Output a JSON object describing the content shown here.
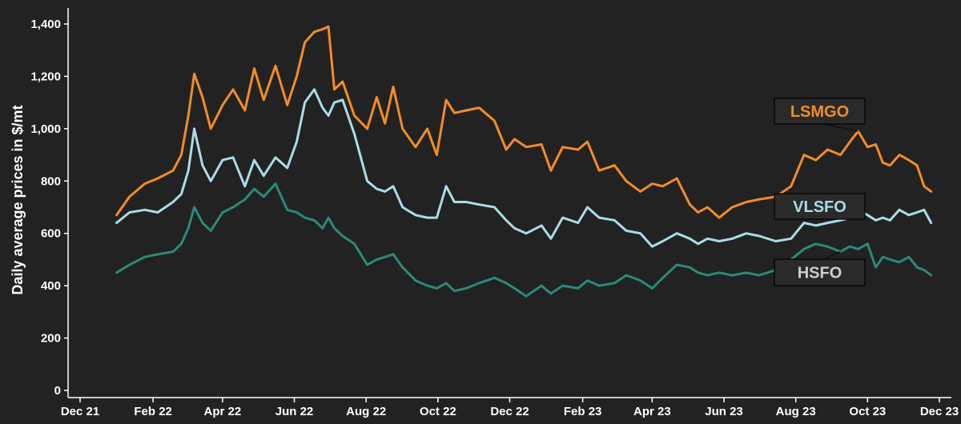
{
  "chart_data": {
    "type": "line",
    "ylabel": "Daily average prices in $/mt",
    "ylim": [
      0,
      1400
    ],
    "y_ticks": [
      0,
      200,
      400,
      600,
      800,
      1000,
      1200,
      1400
    ],
    "y_tick_labels": [
      "0",
      "200",
      "400",
      "600",
      "800",
      "1,000",
      "1,200",
      "1,400"
    ],
    "x_range": [
      "2021-12-01",
      "2023-12-01"
    ],
    "x_tick_labels": [
      {
        "date": "2021-12-01",
        "label": "Dec 21"
      },
      {
        "date": "2022-02-01",
        "label": "Feb 22"
      },
      {
        "date": "2022-04-01",
        "label": "Apr 22"
      },
      {
        "date": "2022-06-01",
        "label": "Jun 22"
      },
      {
        "date": "2022-08-01",
        "label": "Aug 22"
      },
      {
        "date": "2022-10-01",
        "label": "Oct 22"
      },
      {
        "date": "2022-12-01",
        "label": "Dec 22"
      },
      {
        "date": "2023-02-01",
        "label": "Feb 23"
      },
      {
        "date": "2023-04-01",
        "label": "Apr 23"
      },
      {
        "date": "2023-06-01",
        "label": "Jun 23"
      },
      {
        "date": "2023-08-01",
        "label": "Aug 23"
      },
      {
        "date": "2023-10-01",
        "label": "Oct 23"
      },
      {
        "date": "2023-12-01",
        "label": "Dec 23"
      }
    ],
    "grid": false,
    "legend": "callout labels",
    "series": [
      {
        "name": "LSMGO",
        "color": "#f28c28",
        "points": [
          [
            "2022-01-01",
            670
          ],
          [
            "2022-01-12",
            740
          ],
          [
            "2022-01-25",
            790
          ],
          [
            "2022-02-05",
            810
          ],
          [
            "2022-02-18",
            840
          ],
          [
            "2022-02-25",
            900
          ],
          [
            "2022-03-03",
            1050
          ],
          [
            "2022-03-08",
            1210
          ],
          [
            "2022-03-15",
            1120
          ],
          [
            "2022-03-22",
            1000
          ],
          [
            "2022-04-01",
            1090
          ],
          [
            "2022-04-10",
            1150
          ],
          [
            "2022-04-20",
            1070
          ],
          [
            "2022-04-28",
            1230
          ],
          [
            "2022-05-06",
            1110
          ],
          [
            "2022-05-16",
            1240
          ],
          [
            "2022-05-26",
            1090
          ],
          [
            "2022-06-03",
            1200
          ],
          [
            "2022-06-10",
            1330
          ],
          [
            "2022-06-18",
            1370
          ],
          [
            "2022-06-25",
            1380
          ],
          [
            "2022-06-30",
            1390
          ],
          [
            "2022-07-05",
            1150
          ],
          [
            "2022-07-12",
            1180
          ],
          [
            "2022-07-22",
            1050
          ],
          [
            "2022-08-02",
            1000
          ],
          [
            "2022-08-10",
            1120
          ],
          [
            "2022-08-17",
            1020
          ],
          [
            "2022-08-24",
            1160
          ],
          [
            "2022-09-01",
            1000
          ],
          [
            "2022-09-12",
            930
          ],
          [
            "2022-09-22",
            1000
          ],
          [
            "2022-09-30",
            900
          ],
          [
            "2022-10-08",
            1110
          ],
          [
            "2022-10-15",
            1060
          ],
          [
            "2022-10-25",
            1070
          ],
          [
            "2022-11-05",
            1080
          ],
          [
            "2022-11-18",
            1030
          ],
          [
            "2022-11-28",
            920
          ],
          [
            "2022-12-05",
            960
          ],
          [
            "2022-12-15",
            930
          ],
          [
            "2022-12-28",
            940
          ],
          [
            "2023-01-05",
            840
          ],
          [
            "2023-01-15",
            930
          ],
          [
            "2023-01-28",
            920
          ],
          [
            "2023-02-05",
            950
          ],
          [
            "2023-02-15",
            840
          ],
          [
            "2023-02-28",
            860
          ],
          [
            "2023-03-10",
            800
          ],
          [
            "2023-03-22",
            760
          ],
          [
            "2023-04-01",
            790
          ],
          [
            "2023-04-10",
            780
          ],
          [
            "2023-04-22",
            810
          ],
          [
            "2023-05-03",
            710
          ],
          [
            "2023-05-10",
            680
          ],
          [
            "2023-05-18",
            700
          ],
          [
            "2023-05-28",
            660
          ],
          [
            "2023-06-08",
            700
          ],
          [
            "2023-06-20",
            720
          ],
          [
            "2023-07-01",
            730
          ],
          [
            "2023-07-15",
            740
          ],
          [
            "2023-07-28",
            780
          ],
          [
            "2023-08-08",
            900
          ],
          [
            "2023-08-18",
            880
          ],
          [
            "2023-08-28",
            920
          ],
          [
            "2023-09-08",
            900
          ],
          [
            "2023-09-16",
            950
          ],
          [
            "2023-09-23",
            990
          ],
          [
            "2023-10-01",
            930
          ],
          [
            "2023-10-08",
            940
          ],
          [
            "2023-10-14",
            870
          ],
          [
            "2023-10-20",
            860
          ],
          [
            "2023-10-28",
            900
          ],
          [
            "2023-11-05",
            880
          ],
          [
            "2023-11-12",
            860
          ],
          [
            "2023-11-18",
            780
          ],
          [
            "2023-11-24",
            760
          ]
        ]
      },
      {
        "name": "VLSFO",
        "color": "#a8dce8",
        "points": [
          [
            "2022-01-01",
            640
          ],
          [
            "2022-01-12",
            680
          ],
          [
            "2022-01-25",
            690
          ],
          [
            "2022-02-05",
            680
          ],
          [
            "2022-02-18",
            720
          ],
          [
            "2022-02-25",
            750
          ],
          [
            "2022-03-03",
            840
          ],
          [
            "2022-03-08",
            1000
          ],
          [
            "2022-03-15",
            860
          ],
          [
            "2022-03-22",
            800
          ],
          [
            "2022-04-01",
            880
          ],
          [
            "2022-04-10",
            890
          ],
          [
            "2022-04-20",
            780
          ],
          [
            "2022-04-28",
            880
          ],
          [
            "2022-05-06",
            820
          ],
          [
            "2022-05-16",
            890
          ],
          [
            "2022-05-26",
            850
          ],
          [
            "2022-06-03",
            950
          ],
          [
            "2022-06-10",
            1100
          ],
          [
            "2022-06-18",
            1150
          ],
          [
            "2022-06-25",
            1080
          ],
          [
            "2022-06-30",
            1050
          ],
          [
            "2022-07-05",
            1100
          ],
          [
            "2022-07-12",
            1110
          ],
          [
            "2022-07-22",
            980
          ],
          [
            "2022-08-02",
            800
          ],
          [
            "2022-08-10",
            770
          ],
          [
            "2022-08-17",
            760
          ],
          [
            "2022-08-24",
            780
          ],
          [
            "2022-09-01",
            700
          ],
          [
            "2022-09-12",
            670
          ],
          [
            "2022-09-22",
            660
          ],
          [
            "2022-09-30",
            660
          ],
          [
            "2022-10-08",
            780
          ],
          [
            "2022-10-15",
            720
          ],
          [
            "2022-10-25",
            720
          ],
          [
            "2022-11-05",
            710
          ],
          [
            "2022-11-18",
            700
          ],
          [
            "2022-11-28",
            650
          ],
          [
            "2022-12-05",
            620
          ],
          [
            "2022-12-15",
            600
          ],
          [
            "2022-12-28",
            630
          ],
          [
            "2023-01-05",
            580
          ],
          [
            "2023-01-15",
            660
          ],
          [
            "2023-01-28",
            640
          ],
          [
            "2023-02-05",
            700
          ],
          [
            "2023-02-15",
            660
          ],
          [
            "2023-02-28",
            650
          ],
          [
            "2023-03-10",
            610
          ],
          [
            "2023-03-22",
            600
          ],
          [
            "2023-04-01",
            550
          ],
          [
            "2023-04-10",
            570
          ],
          [
            "2023-04-22",
            600
          ],
          [
            "2023-05-03",
            580
          ],
          [
            "2023-05-10",
            560
          ],
          [
            "2023-05-18",
            580
          ],
          [
            "2023-05-28",
            570
          ],
          [
            "2023-06-08",
            580
          ],
          [
            "2023-06-20",
            600
          ],
          [
            "2023-07-01",
            590
          ],
          [
            "2023-07-15",
            570
          ],
          [
            "2023-07-28",
            580
          ],
          [
            "2023-08-08",
            640
          ],
          [
            "2023-08-18",
            630
          ],
          [
            "2023-08-28",
            640
          ],
          [
            "2023-09-08",
            650
          ],
          [
            "2023-09-16",
            660
          ],
          [
            "2023-09-23",
            690
          ],
          [
            "2023-10-01",
            670
          ],
          [
            "2023-10-08",
            650
          ],
          [
            "2023-10-14",
            660
          ],
          [
            "2023-10-20",
            650
          ],
          [
            "2023-10-28",
            690
          ],
          [
            "2023-11-05",
            670
          ],
          [
            "2023-11-12",
            680
          ],
          [
            "2023-11-18",
            690
          ],
          [
            "2023-11-24",
            640
          ]
        ]
      },
      {
        "name": "HSFO",
        "color": "#2a8a7c",
        "points": [
          [
            "2022-01-01",
            450
          ],
          [
            "2022-01-12",
            480
          ],
          [
            "2022-01-25",
            510
          ],
          [
            "2022-02-05",
            520
          ],
          [
            "2022-02-18",
            530
          ],
          [
            "2022-02-25",
            560
          ],
          [
            "2022-03-03",
            620
          ],
          [
            "2022-03-08",
            700
          ],
          [
            "2022-03-15",
            640
          ],
          [
            "2022-03-22",
            610
          ],
          [
            "2022-04-01",
            680
          ],
          [
            "2022-04-10",
            700
          ],
          [
            "2022-04-20",
            730
          ],
          [
            "2022-04-28",
            770
          ],
          [
            "2022-05-06",
            740
          ],
          [
            "2022-05-16",
            790
          ],
          [
            "2022-05-26",
            690
          ],
          [
            "2022-06-03",
            680
          ],
          [
            "2022-06-10",
            660
          ],
          [
            "2022-06-18",
            650
          ],
          [
            "2022-06-25",
            620
          ],
          [
            "2022-06-30",
            660
          ],
          [
            "2022-07-05",
            620
          ],
          [
            "2022-07-12",
            590
          ],
          [
            "2022-07-22",
            560
          ],
          [
            "2022-08-02",
            480
          ],
          [
            "2022-08-10",
            500
          ],
          [
            "2022-08-17",
            510
          ],
          [
            "2022-08-24",
            520
          ],
          [
            "2022-09-01",
            470
          ],
          [
            "2022-09-12",
            420
          ],
          [
            "2022-09-22",
            400
          ],
          [
            "2022-09-30",
            390
          ],
          [
            "2022-10-08",
            410
          ],
          [
            "2022-10-15",
            380
          ],
          [
            "2022-10-25",
            390
          ],
          [
            "2022-11-05",
            410
          ],
          [
            "2022-11-18",
            430
          ],
          [
            "2022-11-28",
            410
          ],
          [
            "2022-12-05",
            390
          ],
          [
            "2022-12-15",
            360
          ],
          [
            "2022-12-28",
            400
          ],
          [
            "2023-01-05",
            370
          ],
          [
            "2023-01-15",
            400
          ],
          [
            "2023-01-28",
            390
          ],
          [
            "2023-02-05",
            420
          ],
          [
            "2023-02-15",
            400
          ],
          [
            "2023-02-28",
            410
          ],
          [
            "2023-03-10",
            440
          ],
          [
            "2023-03-22",
            420
          ],
          [
            "2023-04-01",
            390
          ],
          [
            "2023-04-10",
            430
          ],
          [
            "2023-04-22",
            480
          ],
          [
            "2023-05-03",
            470
          ],
          [
            "2023-05-10",
            450
          ],
          [
            "2023-05-18",
            440
          ],
          [
            "2023-05-28",
            450
          ],
          [
            "2023-06-08",
            440
          ],
          [
            "2023-06-20",
            450
          ],
          [
            "2023-07-01",
            440
          ],
          [
            "2023-07-15",
            460
          ],
          [
            "2023-07-28",
            500
          ],
          [
            "2023-08-08",
            540
          ],
          [
            "2023-08-18",
            560
          ],
          [
            "2023-08-28",
            550
          ],
          [
            "2023-09-08",
            530
          ],
          [
            "2023-09-16",
            550
          ],
          [
            "2023-09-23",
            540
          ],
          [
            "2023-10-01",
            560
          ],
          [
            "2023-10-08",
            470
          ],
          [
            "2023-10-14",
            510
          ],
          [
            "2023-10-20",
            500
          ],
          [
            "2023-10-28",
            490
          ],
          [
            "2023-11-05",
            510
          ],
          [
            "2023-11-12",
            470
          ],
          [
            "2023-11-18",
            460
          ],
          [
            "2023-11-24",
            440
          ]
        ]
      }
    ],
    "annotations": [
      {
        "series": "LSMGO",
        "text": "LSMGO",
        "color": "#f28c28",
        "point": [
          "2023-09-23",
          990
        ]
      },
      {
        "series": "VLSFO",
        "text": "VLSFO",
        "color": "#a8dce8",
        "point": [
          "2023-09-23",
          690
        ]
      },
      {
        "series": "HSFO",
        "text": "HSFO",
        "color": "#c8d0d0",
        "point": [
          "2023-09-08",
          530
        ]
      }
    ]
  }
}
